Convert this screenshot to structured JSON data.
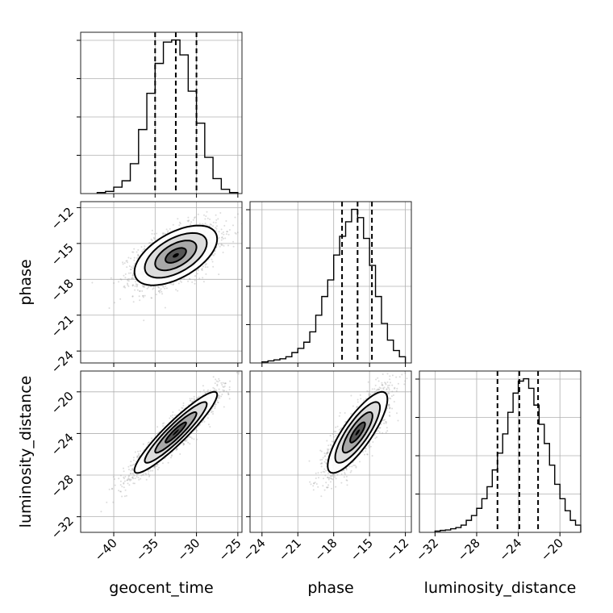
{
  "chart_data": {
    "type": "corner",
    "parameters": [
      "geocent_time",
      "phase",
      "luminosity_distance"
    ],
    "axis_labels": [
      "geocent_time",
      "phase",
      "luminosity_distance"
    ],
    "ranges": [
      [
        -44,
        -24.5
      ],
      [
        -25,
        -11.5
      ],
      [
        -33.5,
        -18
      ]
    ],
    "ticks": [
      [
        -40,
        -35,
        -30,
        -25
      ],
      [
        -24,
        -21,
        -18,
        -15,
        -12
      ],
      [
        -32,
        -28,
        -24,
        -20
      ]
    ],
    "tick_labels": [
      [
        "−40",
        "−35",
        "−30",
        "−25"
      ],
      [
        "−24",
        "−21",
        "−18",
        "−15",
        "−12"
      ],
      [
        "−32",
        "−28",
        "−24",
        "−20"
      ]
    ],
    "quantiles": [
      [
        -35.0,
        -32.5,
        -30.0
      ],
      [
        -17.3,
        -16.0,
        -14.8
      ],
      [
        -26.0,
        -23.9,
        -22.1
      ]
    ],
    "histograms": [
      {
        "edges": [
          -42,
          -41,
          -40,
          -39,
          -38,
          -37,
          -36,
          -35,
          -34,
          -33,
          -32,
          -31,
          -30,
          -29,
          -28,
          -27,
          -26,
          -25
        ],
        "counts": [
          0.5,
          1,
          3,
          6,
          14,
          30,
          47,
          61,
          71,
          72,
          65,
          48,
          33,
          17,
          7,
          2,
          0.5
        ]
      },
      {
        "edges": [
          -24,
          -23.5,
          -23,
          -22.5,
          -22,
          -21.5,
          -21,
          -20.5,
          -20,
          -19.5,
          -19,
          -18.5,
          -18,
          -17.5,
          -17,
          -16.5,
          -16,
          -15.5,
          -15,
          -14.5,
          -14,
          -13.5,
          -13,
          -12.5,
          -12
        ],
        "counts": [
          0.5,
          1,
          1.5,
          2,
          3,
          5,
          7,
          10,
          15,
          23,
          32,
          40,
          52,
          61,
          68,
          74,
          70,
          60,
          47,
          32,
          19,
          11,
          6,
          3
        ]
      },
      {
        "edges": [
          -32,
          -31.5,
          -31,
          -30.5,
          -30,
          -29.5,
          -29,
          -28.5,
          -28,
          -27.5,
          -27,
          -26.5,
          -26,
          -25.5,
          -25,
          -24.5,
          -24,
          -23.5,
          -23,
          -22.5,
          -22,
          -21.5,
          -21,
          -20.5,
          -20,
          -19.5,
          -19,
          -18.5,
          -18
        ],
        "counts": [
          0.5,
          0.8,
          1,
          1.5,
          2,
          3,
          5,
          7,
          10,
          14,
          19,
          26,
          33,
          41,
          50,
          58,
          63,
          64,
          60,
          53,
          45,
          37,
          28,
          20,
          14,
          9,
          5,
          3
        ]
      }
    ],
    "joint": [
      {
        "x": "geocent_time",
        "y": "phase",
        "mean": [
          -32.5,
          -16.0
        ],
        "sd": [
          2.5,
          1.25
        ],
        "corr": 0.55,
        "contour_levels_sigma": [
          0.5,
          1,
          1.5,
          2
        ]
      },
      {
        "x": "geocent_time",
        "y": "luminosity_distance",
        "mean": [
          -32.5,
          -23.9
        ],
        "sd": [
          2.5,
          1.95
        ],
        "corr": 0.93,
        "contour_levels_sigma": [
          0.5,
          1,
          1.5,
          2
        ]
      },
      {
        "x": "phase",
        "y": "luminosity_distance",
        "mean": [
          -16.0,
          -23.9
        ],
        "sd": [
          1.25,
          1.95
        ],
        "corr": 0.82,
        "contour_levels_sigma": [
          0.5,
          1,
          1.5,
          2
        ]
      }
    ],
    "grid": true,
    "colors": {
      "points": "#9a9a9a",
      "lines": "#000000",
      "grid": "#b0b0b0"
    }
  }
}
